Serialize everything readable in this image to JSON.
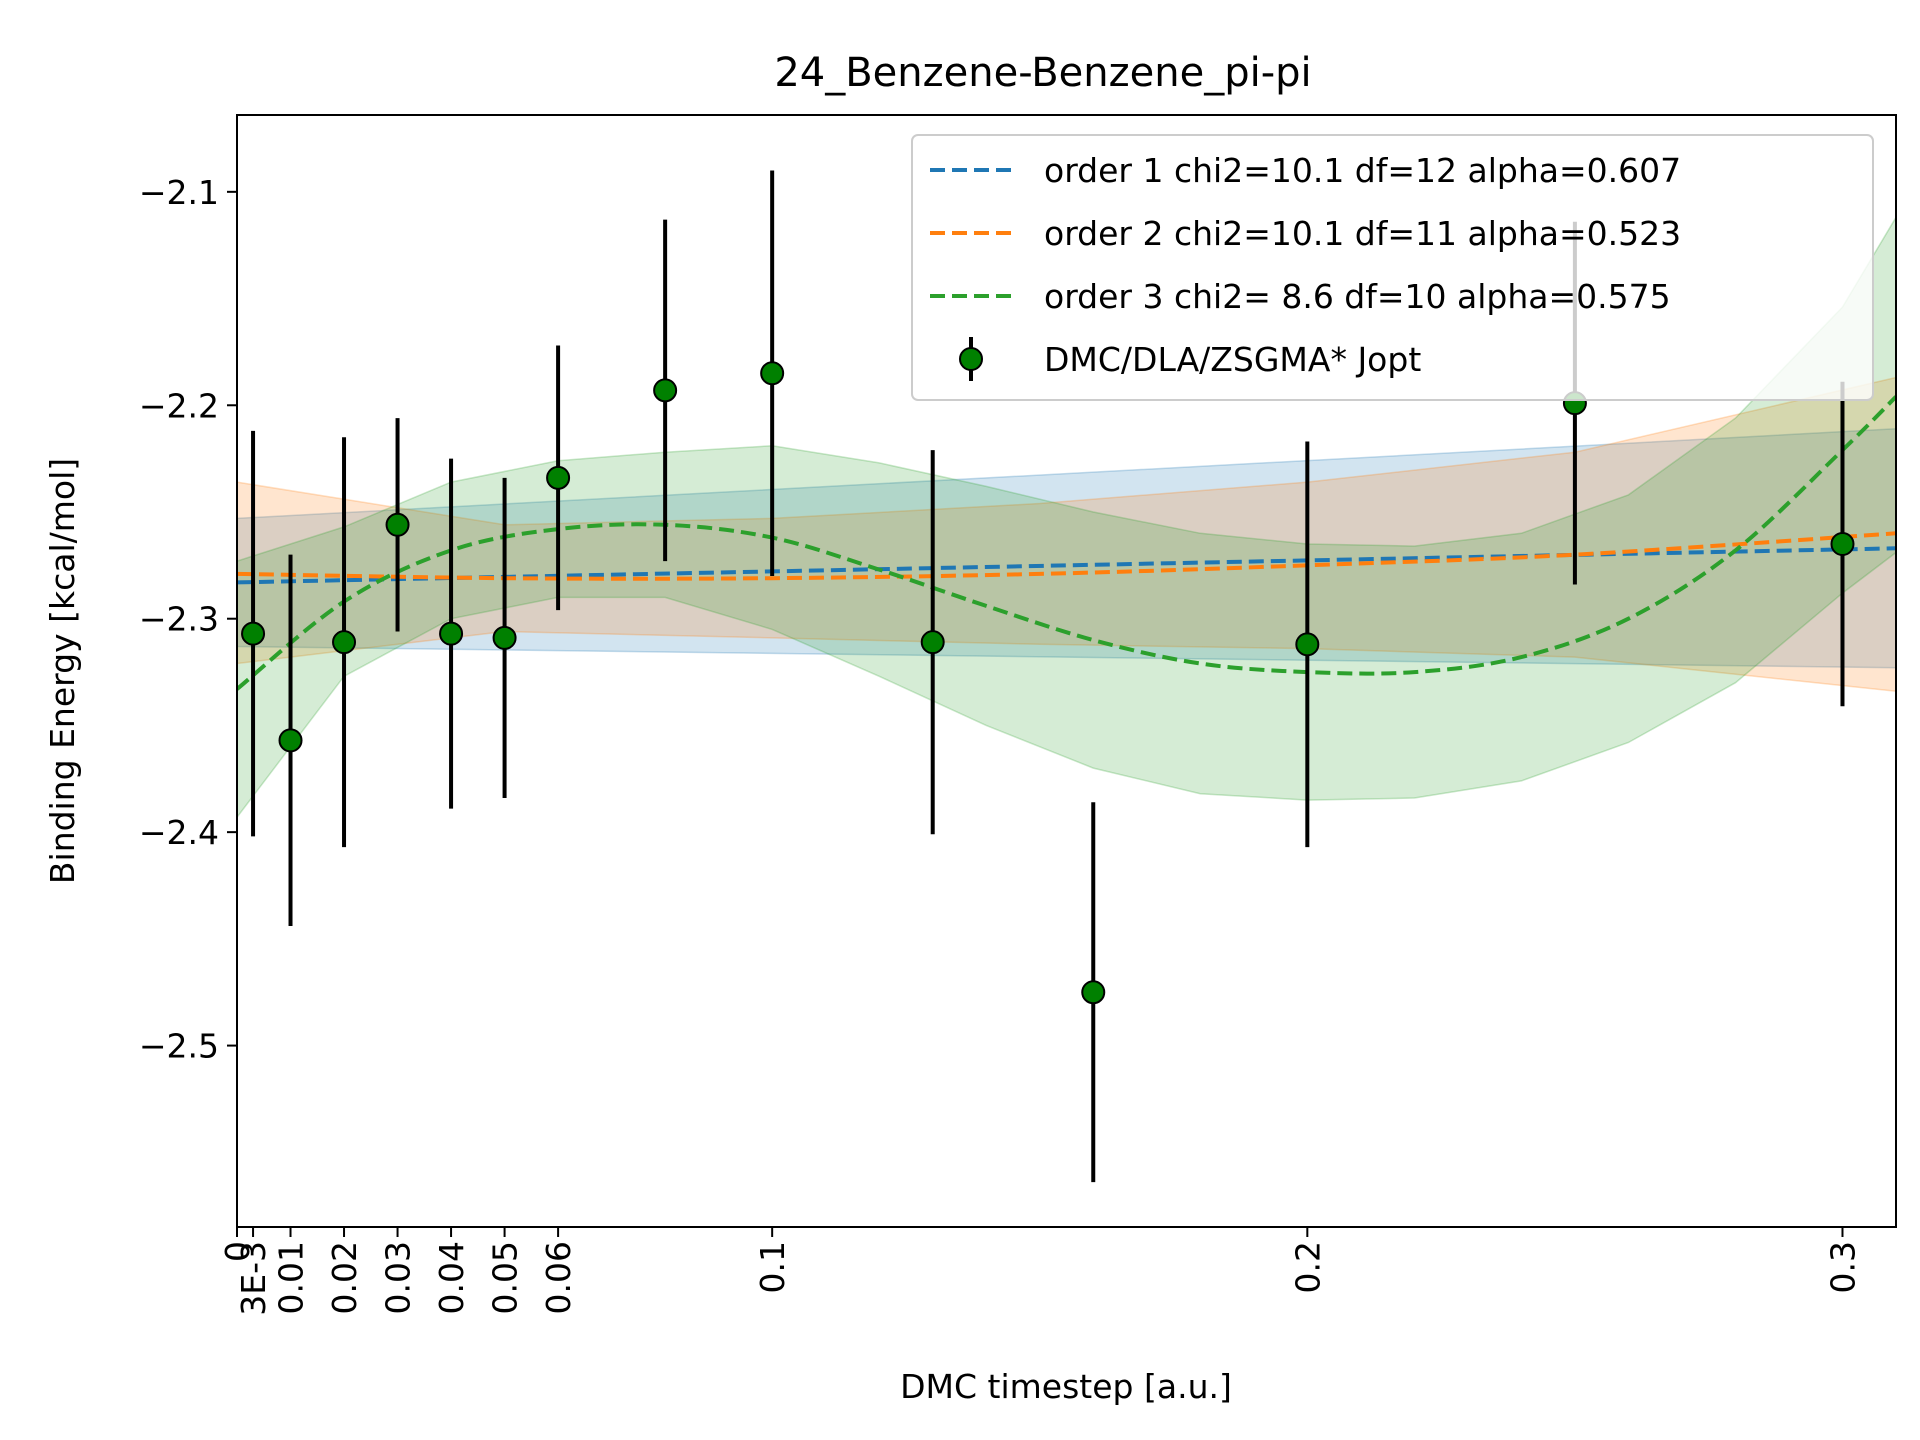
{
  "chart_data": {
    "type": "scatter",
    "title": "24_Benzene-Benzene_pi-pi",
    "xlabel": "DMC timestep [a.u.]",
    "ylabel": "Binding Energy [kcal/mol]",
    "xlim": [
      0,
      0.31
    ],
    "ylim": [
      -2.585,
      -2.064
    ],
    "x_ticks": [
      {
        "value": 0,
        "label": "0"
      },
      {
        "value": 0.003,
        "label": "3E-3"
      },
      {
        "value": 0.01,
        "label": "0.01"
      },
      {
        "value": 0.02,
        "label": "0.02"
      },
      {
        "value": 0.03,
        "label": "0.03"
      },
      {
        "value": 0.04,
        "label": "0.04"
      },
      {
        "value": 0.05,
        "label": "0.05"
      },
      {
        "value": 0.06,
        "label": "0.06"
      },
      {
        "value": 0.1,
        "label": "0.1"
      },
      {
        "value": 0.2,
        "label": "0.2"
      },
      {
        "value": 0.3,
        "label": "0.3"
      }
    ],
    "y_ticks": [
      {
        "value": -2.1,
        "label": "−2.1"
      },
      {
        "value": -2.2,
        "label": "−2.2"
      },
      {
        "value": -2.3,
        "label": "−2.3"
      },
      {
        "value": -2.4,
        "label": "−2.4"
      },
      {
        "value": -2.5,
        "label": "−2.5"
      }
    ],
    "grid": false,
    "legend_position": "top-right",
    "points": {
      "name": "DMC/DLA/ZSGMA* Jopt",
      "color": "#008000",
      "x": [
        0.003,
        0.01,
        0.02,
        0.03,
        0.04,
        0.05,
        0.06,
        0.08,
        0.1,
        0.13,
        0.16,
        0.2,
        0.25,
        0.3
      ],
      "y": [
        -2.307,
        -2.357,
        -2.311,
        -2.256,
        -2.307,
        -2.309,
        -2.234,
        -2.193,
        -2.185,
        -2.311,
        -2.475,
        -2.312,
        -2.199,
        -2.265
      ],
      "err": [
        0.095,
        0.087,
        0.096,
        0.05,
        0.082,
        0.075,
        0.062,
        0.08,
        0.095,
        0.09,
        0.089,
        0.095,
        0.085,
        0.076
      ]
    },
    "fits": [
      {
        "name": "order 1 chi2=10.1 df=12 alpha=0.607",
        "color": "#1f77b4",
        "x": [
          0,
          0.31
        ],
        "y": [
          -2.283,
          -2.267
        ],
        "lower": [
          -2.313,
          -2.323
        ],
        "upper": [
          -2.253,
          -2.211
        ]
      },
      {
        "name": "order 2 chi2=10.1 df=11 alpha=0.523",
        "color": "#ff7f0e",
        "x": [
          0,
          0.05,
          0.1,
          0.15,
          0.2,
          0.25,
          0.31
        ],
        "y": [
          -2.279,
          -2.281,
          -2.281,
          -2.279,
          -2.275,
          -2.27,
          -2.26
        ],
        "lower": [
          -2.321,
          -2.306,
          -2.309,
          -2.312,
          -2.314,
          -2.318,
          -2.334
        ],
        "upper": [
          -2.236,
          -2.256,
          -2.253,
          -2.246,
          -2.236,
          -2.222,
          -2.187
        ]
      },
      {
        "name": "order 3 chi2= 8.6 df=10 alpha=0.575",
        "color": "#2ca02c",
        "x": [
          0,
          0.02,
          0.04,
          0.06,
          0.08,
          0.1,
          0.12,
          0.14,
          0.16,
          0.18,
          0.2,
          0.22,
          0.24,
          0.26,
          0.28,
          0.3,
          0.31
        ],
        "y": [
          -2.333,
          -2.292,
          -2.268,
          -2.258,
          -2.256,
          -2.262,
          -2.277,
          -2.294,
          -2.31,
          -2.321,
          -2.325,
          -2.325,
          -2.318,
          -2.3,
          -2.268,
          -2.221,
          -2.196
        ],
        "lower": [
          -2.393,
          -2.327,
          -2.3,
          -2.29,
          -2.29,
          -2.305,
          -2.327,
          -2.35,
          -2.37,
          -2.382,
          -2.385,
          -2.384,
          -2.376,
          -2.358,
          -2.33,
          -2.288,
          -2.269
        ],
        "upper": [
          -2.273,
          -2.257,
          -2.236,
          -2.226,
          -2.222,
          -2.219,
          -2.227,
          -2.238,
          -2.25,
          -2.26,
          -2.265,
          -2.266,
          -2.26,
          -2.242,
          -2.206,
          -2.154,
          -2.112
        ]
      }
    ]
  }
}
